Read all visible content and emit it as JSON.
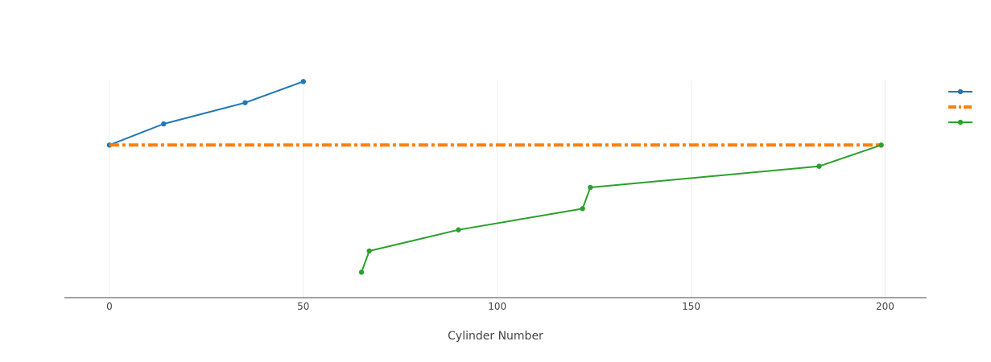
{
  "chart_data": {
    "type": "line",
    "title": "",
    "xlabel": "Cylinder Number",
    "ylabel": "",
    "xlim": [
      -11.6,
      210.7
    ],
    "ylim": [
      -1.2,
      9.05
    ],
    "grid": true,
    "show_y_axis": false,
    "legend_position": "right",
    "x_ticks": [
      0,
      50,
      100,
      150,
      200
    ],
    "series": [
      {
        "name": "",
        "color": "#1f77b4",
        "dash": "solid",
        "markers": true,
        "x": [
          0,
          14,
          35,
          50
        ],
        "y": [
          6.5,
          7.5,
          8.5,
          9.5
        ],
        "visible_x": [
          0,
          14,
          35,
          50
        ],
        "visible_y": [
          6.0,
          7.0,
          8.0,
          9.0
        ]
      },
      {
        "name": "",
        "color": "#ff7f0e",
        "dash": "dashdot",
        "markers": false,
        "x": [
          0,
          199
        ],
        "y": [
          6.0,
          6.0
        ]
      },
      {
        "name": "",
        "color": "#2ca02c",
        "dash": "solid",
        "markers": true,
        "x": [
          65,
          67,
          90,
          122,
          124,
          183,
          199
        ],
        "y": [
          0.0,
          1.0,
          2.0,
          3.0,
          4.0,
          5.0,
          6.0
        ]
      }
    ]
  },
  "legend": {
    "items": [
      {
        "label": ""
      },
      {
        "label": ""
      },
      {
        "label": ""
      }
    ]
  }
}
